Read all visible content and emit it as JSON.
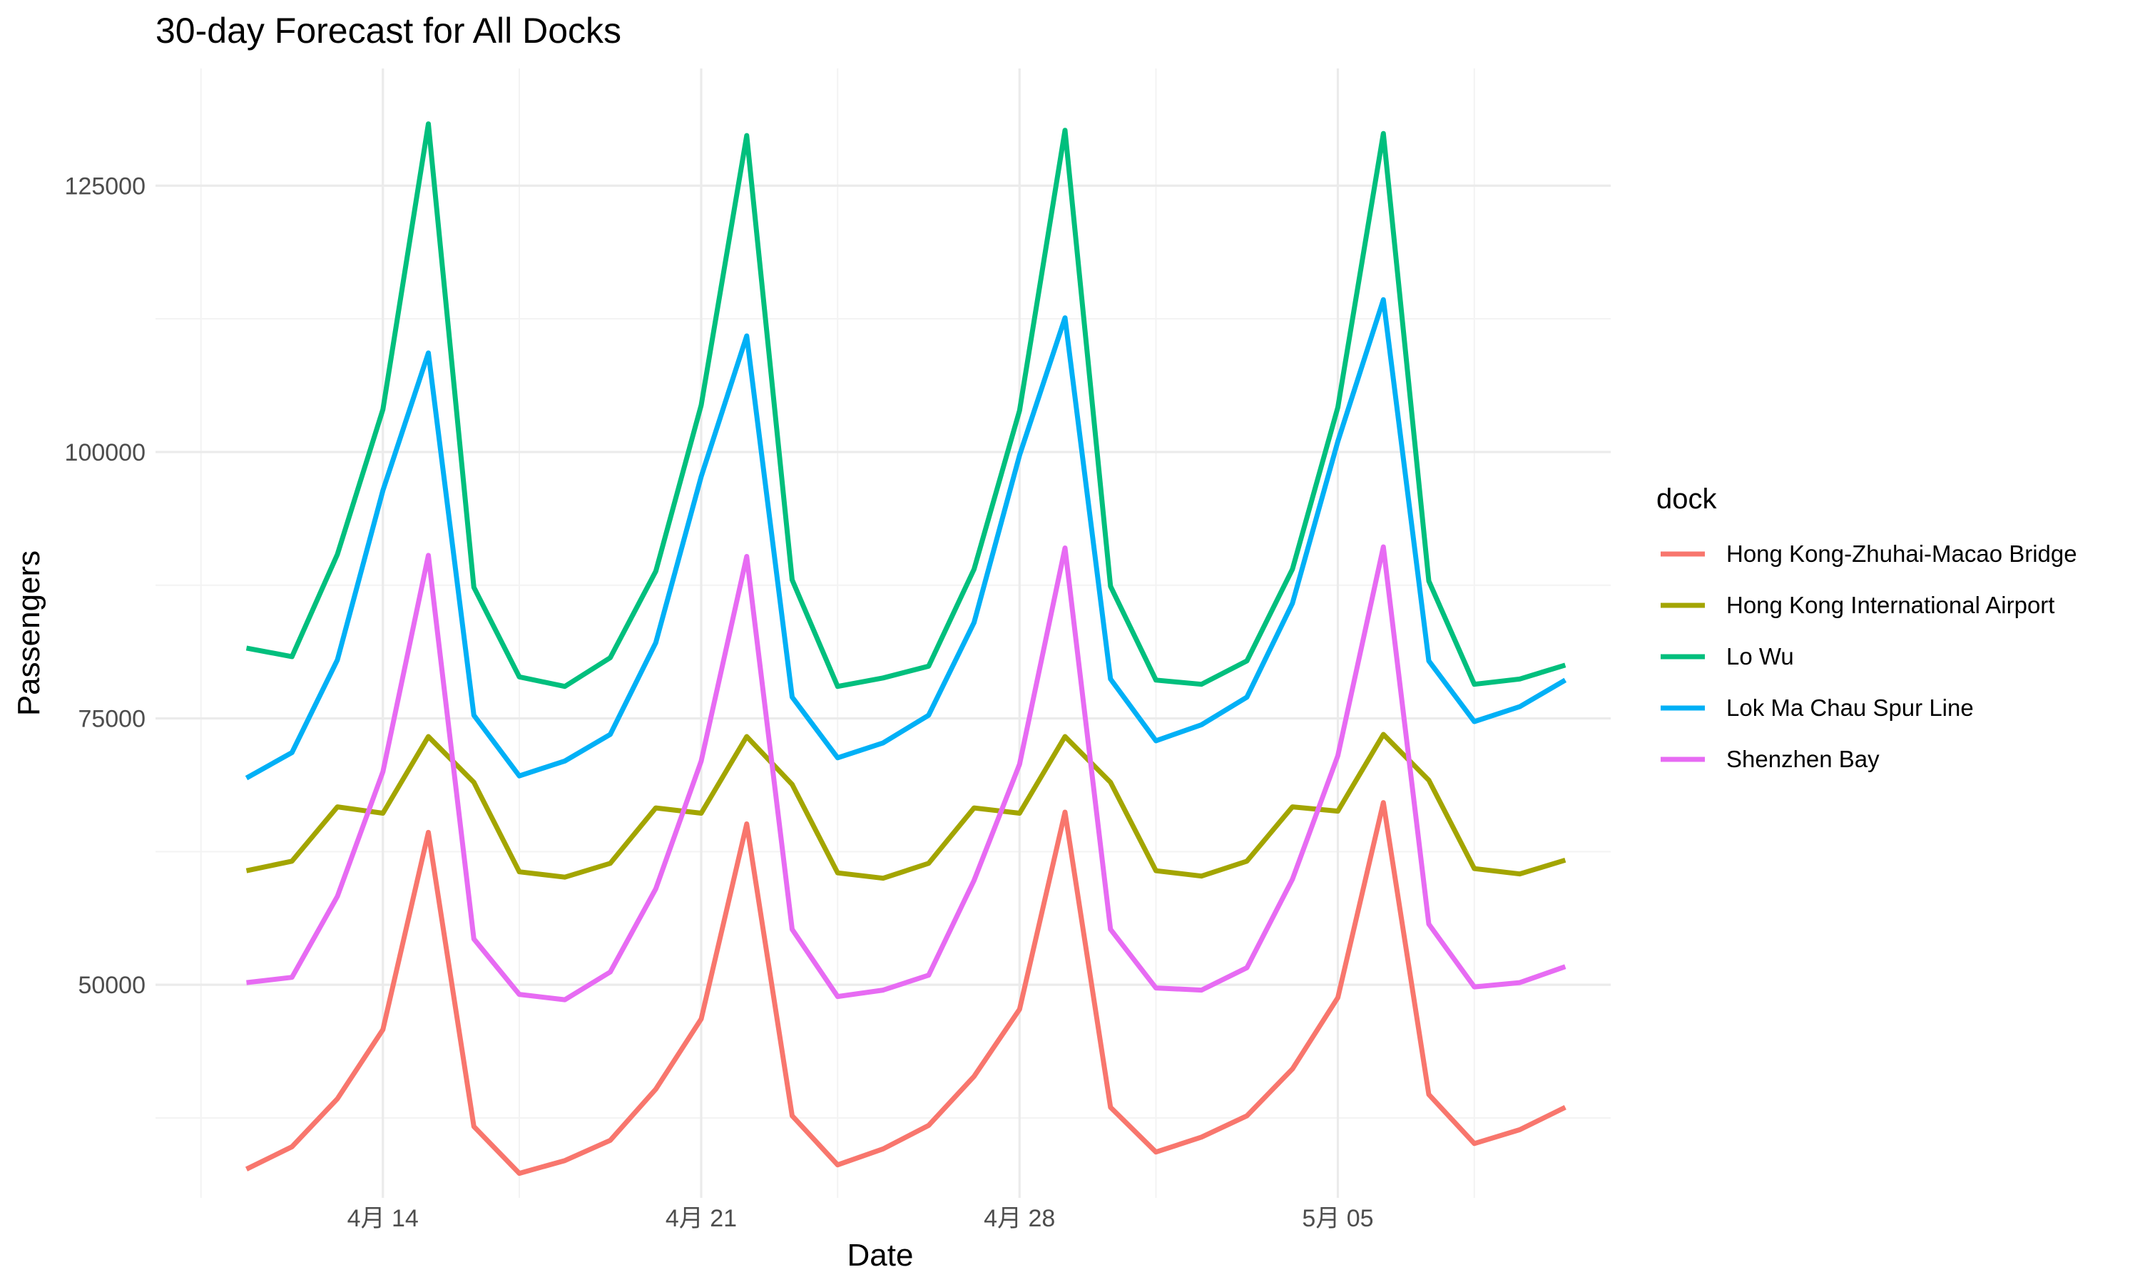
{
  "chart_data": {
    "type": "line",
    "title": "30-day Forecast for All Docks",
    "xlabel": "Date",
    "ylabel": "Passengers",
    "legend_title": "dock",
    "legend_position": "right",
    "grid": true,
    "x_type": "date",
    "x": [
      "2024-04-11",
      "2024-04-12",
      "2024-04-13",
      "2024-04-14",
      "2024-04-15",
      "2024-04-16",
      "2024-04-17",
      "2024-04-18",
      "2024-04-19",
      "2024-04-20",
      "2024-04-21",
      "2024-04-22",
      "2024-04-23",
      "2024-04-24",
      "2024-04-25",
      "2024-04-26",
      "2024-04-27",
      "2024-04-28",
      "2024-04-29",
      "2024-04-30",
      "2024-05-01",
      "2024-05-02",
      "2024-05-03",
      "2024-05-04",
      "2024-05-05",
      "2024-05-06",
      "2024-05-07",
      "2024-05-08",
      "2024-05-09",
      "2024-05-10"
    ],
    "xlim": [
      "2024-04-09",
      "2024-05-11"
    ],
    "ylim": [
      30000,
      136000
    ],
    "x_ticks": [
      {
        "date": "2024-04-14",
        "label": "4月 14"
      },
      {
        "date": "2024-04-21",
        "label": "4月 21"
      },
      {
        "date": "2024-04-28",
        "label": "4月 28"
      },
      {
        "date": "2024-05-05",
        "label": "5月 05"
      }
    ],
    "x_minor_ticks": [
      "2024-04-10",
      "2024-04-17",
      "2024-04-24",
      "2024-05-01",
      "2024-05-08"
    ],
    "y_ticks": [
      {
        "value": 50000,
        "label": "50000"
      },
      {
        "value": 75000,
        "label": "75000"
      },
      {
        "value": 100000,
        "label": "100000"
      },
      {
        "value": 125000,
        "label": "125000"
      }
    ],
    "y_minor_ticks": [
      37500,
      62500,
      87500,
      112500
    ],
    "series": [
      {
        "name": "Hong Kong-Zhuhai-Macao Bridge",
        "color": "#F8766D",
        "values": [
          32700,
          34800,
          39300,
          45800,
          64300,
          36700,
          32300,
          33500,
          35400,
          40200,
          46800,
          65100,
          37700,
          33100,
          34600,
          36800,
          41400,
          47700,
          66200,
          38500,
          34300,
          35700,
          37700,
          42100,
          48800,
          67100,
          39700,
          35100,
          36400,
          38500
        ]
      },
      {
        "name": "Hong Kong International Airport",
        "color": "#A3A500",
        "values": [
          60700,
          61600,
          66700,
          66100,
          73300,
          69000,
          60600,
          60100,
          61400,
          66600,
          66100,
          73300,
          68800,
          60500,
          60000,
          61400,
          66600,
          66100,
          73300,
          69000,
          60700,
          60200,
          61600,
          66700,
          66300,
          73500,
          69200,
          60900,
          60400,
          61700
        ]
      },
      {
        "name": "Lo Wu",
        "color": "#00BF7D",
        "values": [
          81600,
          80800,
          90400,
          104000,
          130800,
          87300,
          78900,
          78000,
          80700,
          88800,
          104400,
          129700,
          88000,
          78000,
          78800,
          79900,
          89000,
          103900,
          130200,
          87400,
          78600,
          78200,
          80400,
          89000,
          104200,
          129900,
          87900,
          78200,
          78700,
          80000
        ]
      },
      {
        "name": "Lok Ma Chau Spur Line",
        "color": "#00B0F6",
        "values": [
          69400,
          71800,
          80500,
          96400,
          109300,
          75300,
          69600,
          71000,
          73500,
          82100,
          97700,
          110900,
          77000,
          71300,
          72700,
          75300,
          84000,
          99700,
          112600,
          78700,
          72900,
          74400,
          77000,
          85800,
          101000,
          114300,
          80400,
          74700,
          76100,
          78600
        ]
      },
      {
        "name": "Shenzhen Bay",
        "color": "#E76BF3",
        "values": [
          50200,
          50700,
          58300,
          70000,
          90300,
          54300,
          49100,
          48600,
          51200,
          59000,
          71000,
          90200,
          55200,
          48900,
          49500,
          50900,
          59800,
          70700,
          91000,
          55200,
          49700,
          49500,
          51600,
          59900,
          71500,
          91100,
          55700,
          49800,
          50200,
          51700
        ]
      }
    ]
  }
}
